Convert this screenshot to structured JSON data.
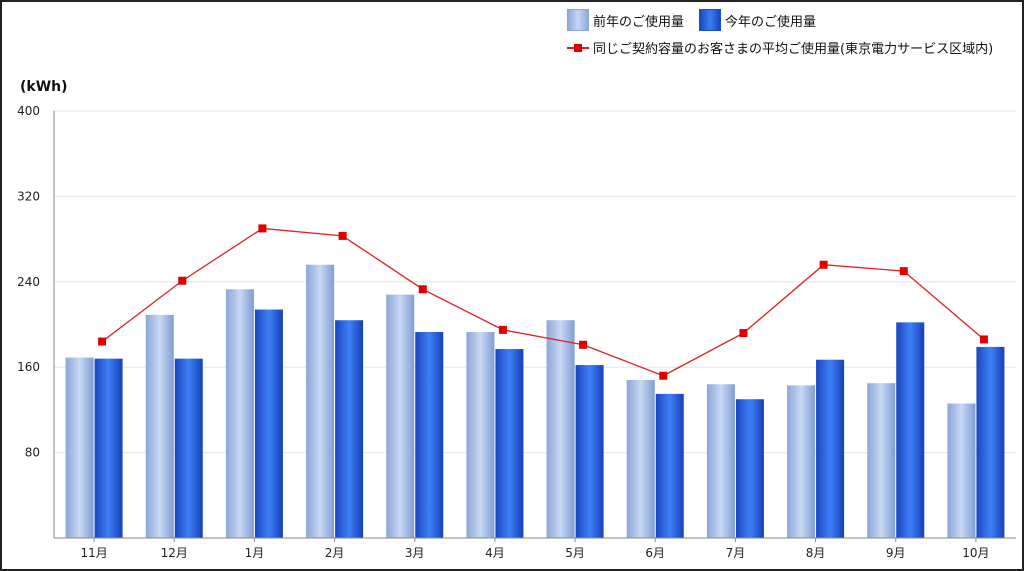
{
  "legend": {
    "prev": "前年のご使用量",
    "curr": "今年のご使用量",
    "avg": "同じご契約容量のお客さまの平均ご使用量(東京電力サービス区域内)"
  },
  "unit_label": "(kWh)",
  "colors": {
    "prev_bar": "#9db5e4",
    "curr_bar": "#2a62e0",
    "avg_line": "#e02020",
    "avg_marker": "#e00000",
    "grid": "#e6e6e6",
    "axis": "#888888"
  },
  "chart_data": {
    "type": "bar",
    "categories": [
      "11月",
      "12月",
      "1月",
      "2月",
      "3月",
      "4月",
      "5月",
      "6月",
      "7月",
      "8月",
      "9月",
      "10月"
    ],
    "series": [
      {
        "name": "前年のご使用量",
        "kind": "bar",
        "values": [
          169,
          209,
          233,
          256,
          228,
          193,
          204,
          148,
          144,
          143,
          145,
          126
        ]
      },
      {
        "name": "今年のご使用量",
        "kind": "bar",
        "values": [
          168,
          168,
          214,
          204,
          193,
          177,
          162,
          135,
          130,
          167,
          202,
          179
        ]
      },
      {
        "name": "同じご契約容量のお客さまの平均ご使用量(東京電力サービス区域内)",
        "kind": "line",
        "values": [
          184,
          241,
          290,
          283,
          233,
          195,
          181,
          152,
          192,
          256,
          250,
          186
        ]
      }
    ],
    "ylim": [
      0,
      400
    ],
    "yticks": [
      80,
      160,
      240,
      320,
      400
    ],
    "ylabel": "(kWh)",
    "xlabel": "",
    "grid": true,
    "legend_position": "top-right"
  }
}
